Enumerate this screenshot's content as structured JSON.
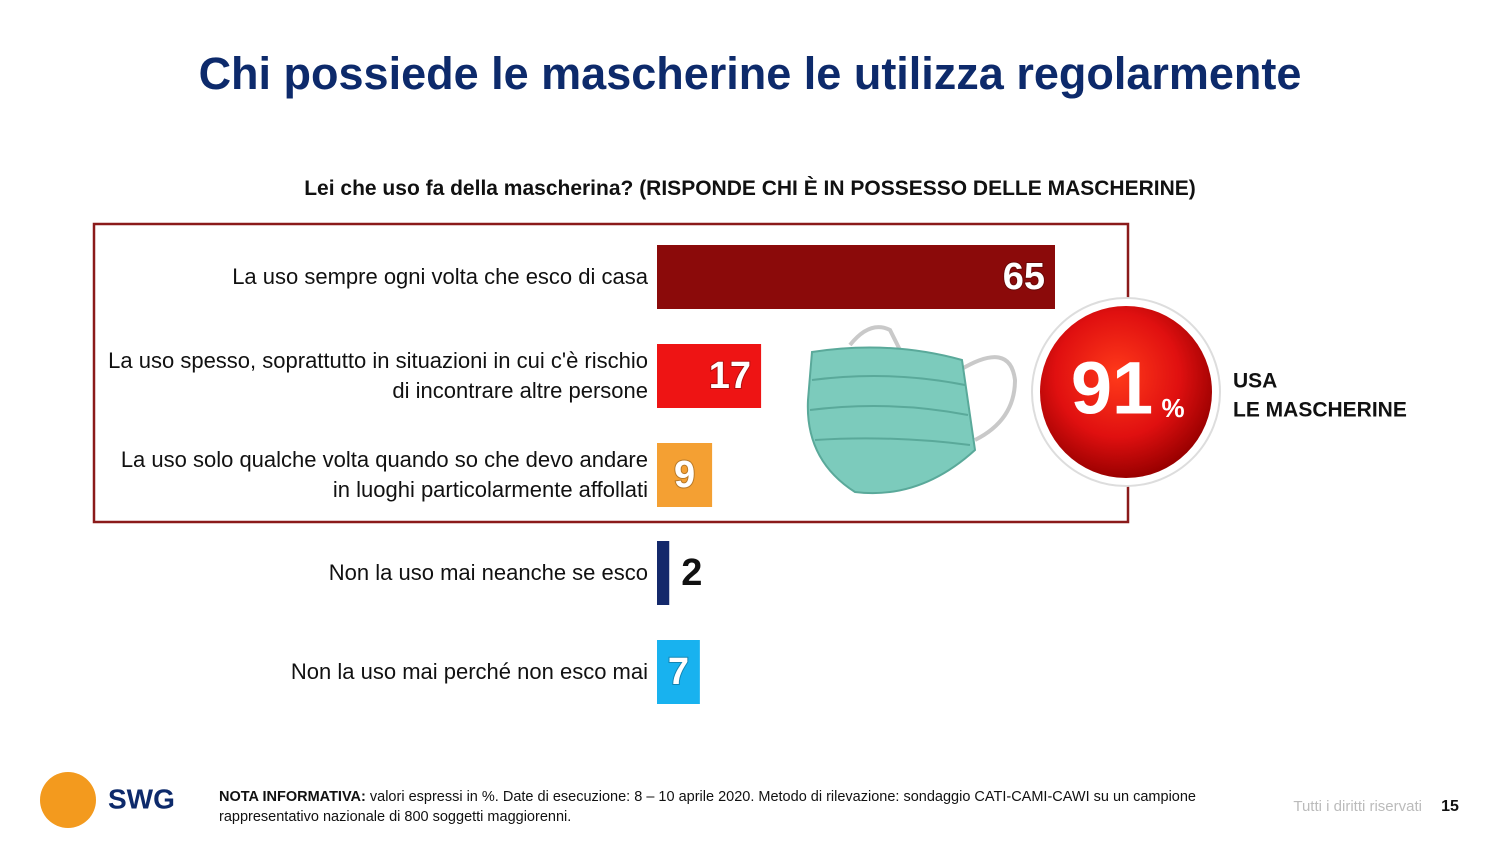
{
  "title": "Chi possiede le mascherine le utilizza regolarmente",
  "chart_data": {
    "type": "hbar",
    "subtitle": "Lei che uso fa della mascherina? (RISPONDE CHI È IN POSSESSO DELLE MASCHERINE)",
    "categories": [
      "La uso sempre ogni volta che esco di casa",
      "La uso spesso, soprattutto in situazioni in cui c'è rischio di incontrare altre persone",
      "La uso solo qualche volta quando so che devo andare in luoghi particolarmente affollati",
      "Non la uso mai neanche se esco",
      "Non la uso mai perché non esco mai"
    ],
    "values": [
      65,
      17,
      9,
      2,
      7
    ],
    "colors": [
      "#8b0a0a",
      "#ee1414",
      "#f4a033",
      "#14296b",
      "#18b2ef"
    ]
  },
  "highlight": {
    "value": 91,
    "unit": "%",
    "label": [
      "USA",
      "LE MASCHERINE"
    ]
  },
  "note": {
    "heading": "NOTA INFORMATIVA:",
    "text": "valori espressi in %. Date di esecuzione: 8 – 10 aprile 2020. Metodo di rilevazione: sondaggio CATI-CAMI-CAWI su un campione rappresentativo nazionale di 800 soggetti maggiorenni."
  },
  "footer": {
    "logo": "SWG",
    "rights": "Tutti i diritti riservati",
    "page": "15"
  }
}
